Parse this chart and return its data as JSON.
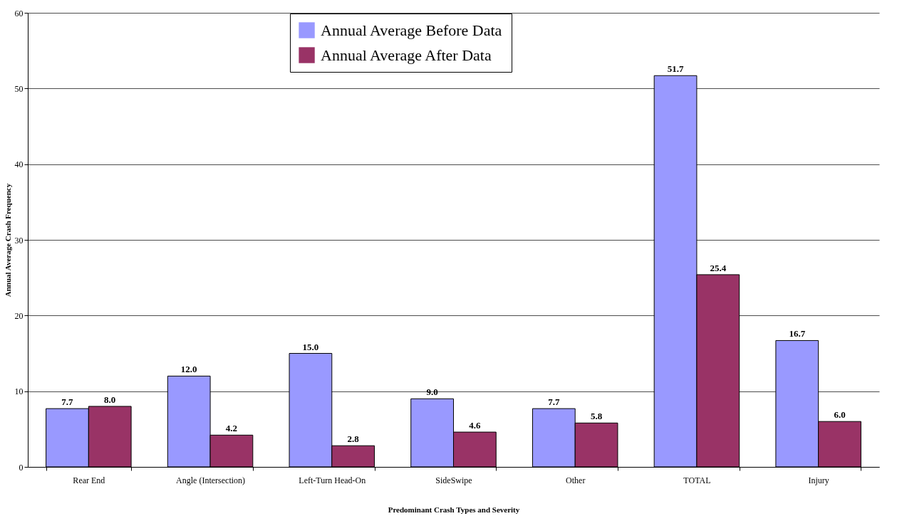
{
  "chart_data": {
    "type": "bar",
    "xlabel": "Predominant Crash Types and Severity",
    "ylabel": "Annual Average Crash Frequency",
    "categories": [
      "Rear End",
      "Angle (Intersection)",
      "Left-Turn Head-On",
      "SideSwipe",
      "Other",
      "TOTAL",
      "Injury"
    ],
    "series": [
      {
        "name": "Annual Average Before Data",
        "color": "#9999ff",
        "values": [
          7.7,
          12.0,
          15.0,
          9.0,
          7.7,
          51.7,
          16.7
        ],
        "value_labels": [
          "7.7",
          "12.0",
          "15.0",
          "9.0",
          "7.7",
          "51.7",
          "16.7"
        ]
      },
      {
        "name": "Annual Average After Data",
        "color": "#993366",
        "values": [
          8.0,
          4.2,
          2.8,
          4.6,
          5.8,
          25.4,
          6.0
        ],
        "value_labels": [
          "8.0",
          "4.2",
          "2.8",
          "4.6",
          "5.8",
          "25.4",
          "6.0"
        ]
      }
    ],
    "ylim": [
      0,
      60
    ],
    "yticks": [
      0,
      10,
      20,
      30,
      40,
      50,
      60
    ],
    "grid": "y",
    "legend": "top"
  }
}
